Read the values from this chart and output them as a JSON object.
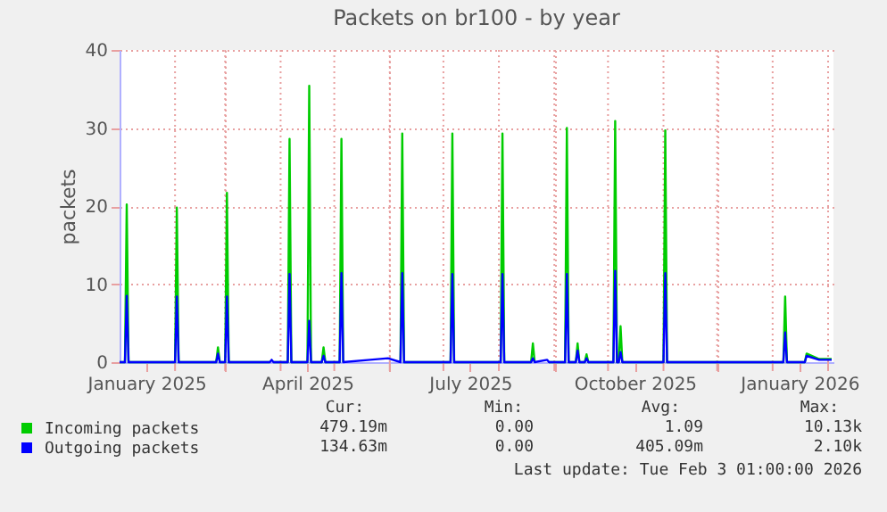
{
  "chart_data": {
    "type": "line",
    "title": "Packets on br100 - by year",
    "ylabel": "packets",
    "x": [
      "2025-01-01",
      "2025-01-04",
      "2025-01-05",
      "2025-01-06",
      "2025-02-01",
      "2025-02-02",
      "2025-02-03",
      "2025-02-24",
      "2025-02-25",
      "2025-02-26",
      "2025-03-01",
      "2025-03-02",
      "2025-03-03",
      "2025-03-26",
      "2025-03-27",
      "2025-03-28",
      "2025-04-05",
      "2025-04-06",
      "2025-04-07",
      "2025-04-16",
      "2025-04-17",
      "2025-04-18",
      "2025-04-24",
      "2025-04-25",
      "2025-04-26",
      "2025-05-04",
      "2025-05-05",
      "2025-05-06",
      "2025-05-21",
      "2025-05-31",
      "2025-06-07",
      "2025-06-08",
      "2025-06-09",
      "2025-07-05",
      "2025-07-06",
      "2025-07-07",
      "2025-08-02",
      "2025-08-03",
      "2025-08-04",
      "2025-08-19",
      "2025-08-20",
      "2025-08-21",
      "2025-08-28",
      "2025-08-29",
      "2025-09-07",
      "2025-09-08",
      "2025-09-09",
      "2025-09-13",
      "2025-09-14",
      "2025-09-15",
      "2025-09-18",
      "2025-09-19",
      "2025-09-20",
      "2025-10-04",
      "2025-10-05",
      "2025-10-06",
      "2025-10-07",
      "2025-10-08",
      "2025-10-09",
      "2025-11-01",
      "2025-11-02",
      "2025-11-03",
      "2026-01-07",
      "2026-01-08",
      "2026-01-09",
      "2026-01-19",
      "2026-01-20",
      "2026-01-27",
      "2026-02-02",
      "2026-02-03"
    ],
    "series": [
      {
        "name": "Incoming packets",
        "color": "#00cc00",
        "values": [
          0,
          0,
          20.2,
          0,
          0,
          19.8,
          0,
          0,
          1.9,
          0,
          0,
          21.7,
          0,
          0,
          null,
          0,
          0,
          28.6,
          0,
          0,
          35.4,
          0,
          0,
          1.9,
          0,
          0,
          28.6,
          0,
          null,
          null,
          0,
          29.3,
          0,
          0,
          29.3,
          0,
          0,
          29.3,
          0,
          0,
          2.4,
          0,
          null,
          0,
          0,
          30,
          0,
          0,
          2.4,
          0,
          0,
          1,
          0,
          0,
          30.9,
          0,
          0,
          4.6,
          0,
          0,
          29.7,
          0,
          0,
          8.4,
          0,
          0,
          1.1,
          0.4,
          0.4,
          0.4
        ]
      },
      {
        "name": "Outgoing packets",
        "color": "#0000ff",
        "values": [
          0,
          0,
          8.5,
          0,
          0,
          8.4,
          0,
          0,
          1.1,
          0,
          0,
          8.4,
          0,
          0,
          0.3,
          0,
          0,
          11.3,
          0,
          0,
          5.3,
          0,
          0,
          0.8,
          0,
          0,
          11.4,
          0,
          0.3,
          0.5,
          0,
          11.4,
          0,
          0,
          11.3,
          0,
          0,
          11.3,
          0,
          0,
          0.5,
          0,
          0.3,
          0,
          0,
          11.3,
          0,
          0,
          1.5,
          0,
          0,
          0.5,
          0,
          0,
          11.7,
          0,
          0,
          1.3,
          0,
          0,
          11.4,
          0,
          0,
          3.8,
          0,
          0,
          0.8,
          0.3,
          0.3,
          0.3
        ]
      }
    ],
    "xlim": [
      "2025-01-01",
      "2026-02-04"
    ],
    "xticks": [
      {
        "value": "2025-01-16",
        "label": "January 2025"
      },
      {
        "value": "2025-02-01",
        "label": null
      },
      {
        "value": "2025-03-01",
        "label": null
      },
      {
        "value": "2025-04-01",
        "label": null
      },
      {
        "value": "2025-04-16",
        "label": "April 2025"
      },
      {
        "value": "2025-05-01",
        "label": null
      },
      {
        "value": "2025-06-01",
        "label": null
      },
      {
        "value": "2025-07-01",
        "label": null
      },
      {
        "value": "2025-07-16",
        "label": "July 2025"
      },
      {
        "value": "2025-08-01",
        "label": null
      },
      {
        "value": "2025-09-01",
        "label": null
      },
      {
        "value": "2025-10-01",
        "label": null
      },
      {
        "value": "2025-10-16",
        "label": "October 2025"
      },
      {
        "value": "2025-11-01",
        "label": null
      },
      {
        "value": "2025-12-01",
        "label": null
      },
      {
        "value": "2026-01-01",
        "label": null
      },
      {
        "value": "2026-01-16",
        "label": "January 2026"
      },
      {
        "value": "2026-02-01",
        "label": null
      }
    ],
    "ylim": [
      0,
      40
    ],
    "yticks": [
      0,
      10,
      20,
      30,
      40
    ],
    "grid": true,
    "legend": "bottom",
    "marker": "none",
    "line_style": "solid",
    "annotations": [
      "Cur:",
      "Min:",
      "Avg:",
      "Max:",
      "479.19m",
      "0.00",
      "1.09",
      "10.13k",
      "134.63m",
      "0.00",
      "405.09m",
      "2.10k",
      "Last update: Tue Feb  3 01:00:00 2026"
    ]
  }
}
